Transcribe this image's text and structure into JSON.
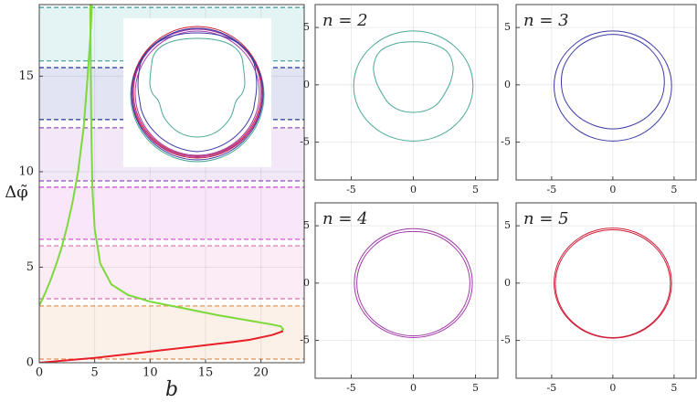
{
  "chart_data": [
    {
      "type": "line",
      "xlabel": "b",
      "ylabel": "Δφ̃",
      "xlim": [
        0,
        23.9
      ],
      "ylim": [
        0,
        18.75
      ],
      "xticks": [
        0,
        5,
        10,
        15,
        20
      ],
      "yticks": [
        0,
        5,
        10,
        15
      ],
      "grid": true,
      "bands": [
        {
          "from": 0.19,
          "to": 2.97,
          "color": "#e8904a"
        },
        {
          "from": 3.35,
          "to": 6.12,
          "color": "#e070b0"
        },
        {
          "from": 6.46,
          "to": 9.19,
          "color": "#d040d8"
        },
        {
          "from": 9.52,
          "to": 12.3,
          "color": "#9a4ac0"
        },
        {
          "from": 12.73,
          "to": 15.45,
          "color": "#2030a0"
        },
        {
          "from": 15.8,
          "to": 18.6,
          "color": "#30a0a0"
        }
      ],
      "series": [
        {
          "color": "#7dd93a",
          "x": [
            4.6,
            4.65,
            4.7,
            4.8,
            5.0,
            5.5,
            6.5,
            8,
            10,
            13,
            16,
            19,
            21,
            21.8,
            22,
            21.8
          ],
          "values": [
            18.75,
            15,
            12,
            9,
            7,
            5.2,
            4.1,
            3.55,
            3.2,
            2.85,
            2.5,
            2.2,
            2.0,
            1.9,
            1.75,
            1.62
          ]
        },
        {
          "color": "#7dd93a",
          "x": [
            0,
            0.5,
            1,
            1.5,
            2,
            2.5,
            3,
            3.5,
            4,
            4.3,
            4.6,
            4.75
          ],
          "values": [
            3.0,
            3.6,
            4.3,
            5.1,
            6.0,
            7.1,
            8.4,
            10,
            12.3,
            14.5,
            17,
            18.75
          ]
        },
        {
          "color": "#e8202a",
          "x": [
            0,
            2,
            5,
            8,
            11,
            14,
            17,
            19,
            21,
            22
          ],
          "values": [
            0,
            0.1,
            0.25,
            0.45,
            0.65,
            0.85,
            1.05,
            1.2,
            1.45,
            1.65
          ]
        }
      ]
    },
    {
      "type": "curves",
      "title": "n = 2",
      "xlim": [
        -7.9,
        6.8
      ],
      "ylim": [
        -8.3,
        7.0
      ],
      "xticks": [
        -5,
        0,
        5
      ],
      "yticks": [
        -5,
        0,
        5
      ],
      "grid": true,
      "series": [
        {
          "color": "#4aa896",
          "x": [
            4.8,
            4.44,
            3.39,
            1.84,
            0,
            -1.84,
            -3.39,
            -4.44,
            -4.8,
            -4.44,
            -3.39,
            -1.84,
            0,
            1.84,
            3.39,
            4.44
          ],
          "values": [
            -0.1,
            1.74,
            3.29,
            4.34,
            4.7,
            4.34,
            3.29,
            1.74,
            -0.1,
            -1.94,
            -3.49,
            -4.54,
            -4.9,
            -4.54,
            -3.49,
            -1.94
          ]
        },
        {
          "color": "#4aa896",
          "x": [
            3.0,
            3.2,
            2.7,
            1.4,
            0,
            -1.4,
            -2.7,
            -3.2,
            -3.0,
            -2.5,
            -1.9,
            -1.0,
            0,
            1.0,
            1.9,
            2.5
          ],
          "values": [
            0.3,
            1.6,
            2.9,
            3.6,
            3.75,
            3.6,
            2.9,
            1.6,
            0.3,
            -0.8,
            -1.7,
            -2.25,
            -2.4,
            -2.25,
            -1.7,
            -0.8
          ]
        }
      ]
    },
    {
      "type": "curves",
      "title": "n = 3",
      "xlim": [
        -7.9,
        6.8
      ],
      "ylim": [
        -8.3,
        7.0
      ],
      "xticks": [
        -5,
        0,
        5
      ],
      "yticks": [
        -5,
        0,
        5
      ],
      "grid": true,
      "series": [
        {
          "color": "#3a3aa8",
          "x": [
            4.8,
            4.44,
            3.39,
            1.84,
            0,
            -1.84,
            -3.39,
            -4.44,
            -4.8,
            -4.44,
            -3.39,
            -1.84,
            0,
            1.84,
            3.39,
            4.44
          ],
          "values": [
            -0.1,
            1.74,
            3.29,
            4.34,
            4.7,
            4.34,
            3.29,
            1.74,
            -0.1,
            -1.94,
            -3.49,
            -4.54,
            -4.9,
            -4.54,
            -3.49,
            -1.94
          ]
        },
        {
          "color": "#3a3aa8",
          "x": [
            4.2,
            4.0,
            3.05,
            1.65,
            0,
            -1.65,
            -3.05,
            -4.0,
            -4.2,
            -3.85,
            -2.85,
            -1.5,
            0,
            1.5,
            2.85,
            3.85
          ],
          "values": [
            0,
            1.6,
            3.1,
            4.05,
            4.4,
            4.05,
            3.1,
            1.6,
            0,
            -1.45,
            -2.75,
            -3.55,
            -3.85,
            -3.55,
            -2.75,
            -1.45
          ]
        }
      ]
    },
    {
      "type": "curves",
      "title": "n = 4",
      "xlim": [
        -7.9,
        6.8
      ],
      "ylim": [
        -8.3,
        7.0
      ],
      "xticks": [
        -5,
        0,
        5
      ],
      "yticks": [
        -5,
        0,
        5
      ],
      "grid": true,
      "series": [
        {
          "color": "#a03aa8",
          "x": [
            4.75,
            4.39,
            3.36,
            1.82,
            0,
            -1.82,
            -3.36,
            -4.39,
            -4.75,
            -4.39,
            -3.36,
            -1.82,
            0,
            1.82,
            3.36,
            4.39
          ],
          "values": [
            0,
            1.82,
            3.36,
            4.39,
            4.75,
            4.39,
            3.36,
            1.82,
            0,
            -1.82,
            -3.36,
            -4.39,
            -4.75,
            -4.39,
            -3.36,
            -1.82
          ]
        },
        {
          "color": "#a03aa8",
          "x": [
            4.55,
            4.2,
            3.22,
            1.74,
            0,
            -1.74,
            -3.22,
            -4.2,
            -4.55,
            -4.2,
            -3.22,
            -1.74,
            0,
            1.74,
            3.22,
            4.2
          ],
          "values": [
            0,
            1.74,
            3.2,
            4.2,
            4.5,
            4.2,
            3.2,
            1.74,
            0,
            -1.76,
            -3.25,
            -4.25,
            -4.6,
            -4.25,
            -3.25,
            -1.76
          ]
        }
      ]
    },
    {
      "type": "curves",
      "title": "n = 5",
      "xlim": [
        -7.9,
        6.8
      ],
      "ylim": [
        -8.3,
        7.0
      ],
      "xticks": [
        -5,
        0,
        5
      ],
      "yticks": [
        -5,
        0,
        5
      ],
      "grid": true,
      "series": [
        {
          "color": "#d0203a",
          "x": [
            4.8,
            4.44,
            3.39,
            1.84,
            0,
            -1.84,
            -3.39,
            -4.44,
            -4.8,
            -4.44,
            -3.39,
            -1.84,
            0,
            1.84,
            3.39,
            4.44
          ],
          "values": [
            0,
            1.84,
            3.39,
            4.44,
            4.8,
            4.44,
            3.39,
            1.84,
            0,
            -1.84,
            -3.39,
            -4.44,
            -4.8,
            -4.44,
            -3.39,
            -1.84
          ]
        },
        {
          "color": "#d0203a",
          "x": [
            4.7,
            4.34,
            3.32,
            1.8,
            0,
            -1.8,
            -3.32,
            -4.34,
            -4.7,
            -4.34,
            -3.32,
            -1.8,
            0,
            1.8,
            3.32,
            4.34
          ],
          "values": [
            -0.05,
            1.75,
            3.27,
            4.29,
            4.65,
            4.29,
            3.27,
            1.75,
            -0.05,
            -1.85,
            -3.37,
            -4.39,
            -4.75,
            -4.39,
            -3.37,
            -1.85
          ]
        }
      ]
    }
  ]
}
